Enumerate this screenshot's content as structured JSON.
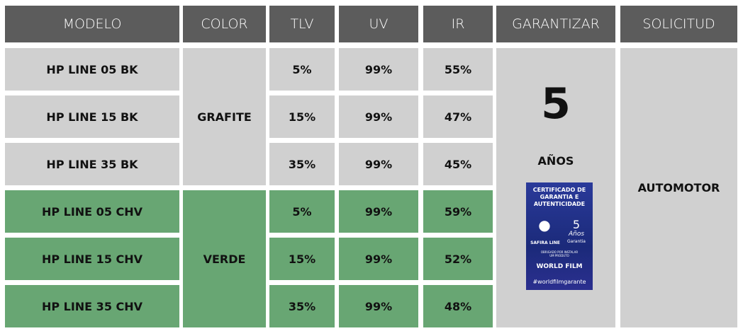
{
  "header": {
    "columns": [
      "MODELO",
      "COLOR",
      "TLV",
      "UV",
      "IR",
      "GARANTIZAR",
      "SOLICITUD"
    ]
  },
  "table": {
    "rows": [
      [
        "HP LINE 05 BK",
        "5%",
        "99%",
        "55%"
      ],
      [
        "HP LINE 15 BK",
        "15%",
        "99%",
        "47%"
      ],
      [
        "HP LINE 35 BK",
        "35%",
        "99%",
        "45%"
      ],
      [
        "HP LINE 05 CHV",
        "5%",
        "99%",
        "59%"
      ],
      [
        "HP LINE 15 CHV",
        "15%",
        "99%",
        "52%"
      ],
      [
        "HP LINE 35 CHV",
        "35%",
        "99%",
        "48%"
      ]
    ],
    "groups": [
      {
        "color": "GRAFITE",
        "fill": "#d0d0d0"
      },
      {
        "color": "VERDE",
        "fill": "#68a673"
      }
    ],
    "warranty": {
      "number": "5",
      "unit": "AÑOS"
    },
    "application": "AUTOMOTOR"
  },
  "certificate": {
    "title": "CERTIFICADO DE GARANTIA E AUTENTICIDADE",
    "brand": "SAFIRA LINE",
    "years": "5",
    "years_text": "Años",
    "years_sub": "Garantia",
    "note": "OBRIGADO POR INSTALAR UM PRODUTO",
    "maker": "WORLD FILM",
    "hashtag": "#worldfilmgarante"
  }
}
